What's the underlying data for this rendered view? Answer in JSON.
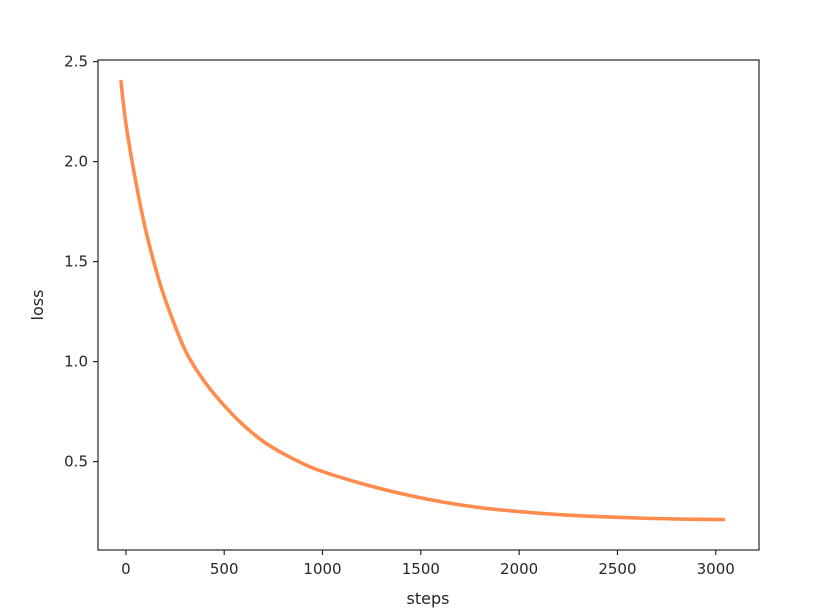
{
  "chart_data": {
    "type": "line",
    "title": "",
    "xlabel": "steps",
    "ylabel": "loss",
    "xlim": [
      -142,
      3220
    ],
    "ylim": [
      0.058,
      2.508
    ],
    "xticks": [
      0,
      500,
      1000,
      1500,
      2000,
      2500,
      3000
    ],
    "xtick_labels": [
      "0",
      "500",
      "1000",
      "1500",
      "2000",
      "2500",
      "3000"
    ],
    "yticks": [
      0.5,
      1.0,
      1.5,
      2.0,
      2.5
    ],
    "ytick_labels": [
      "0.5",
      "1.0",
      "1.5",
      "2.0",
      "2.5"
    ],
    "grid": false,
    "legend": "none",
    "series": [
      {
        "color": "#ff8c4c",
        "x": [
          -25,
          0,
          50,
          100,
          150,
          200,
          300,
          400,
          500,
          600,
          700,
          800,
          900,
          1000,
          1200,
          1400,
          1600,
          1800,
          2000,
          2200,
          2400,
          2600,
          2800,
          3040
        ],
        "y": [
          2.4,
          2.19,
          1.9,
          1.66,
          1.47,
          1.31,
          1.06,
          0.9,
          0.78,
          0.68,
          0.6,
          0.54,
          0.49,
          0.45,
          0.39,
          0.34,
          0.3,
          0.27,
          0.25,
          0.235,
          0.225,
          0.218,
          0.213,
          0.21
        ]
      }
    ]
  }
}
